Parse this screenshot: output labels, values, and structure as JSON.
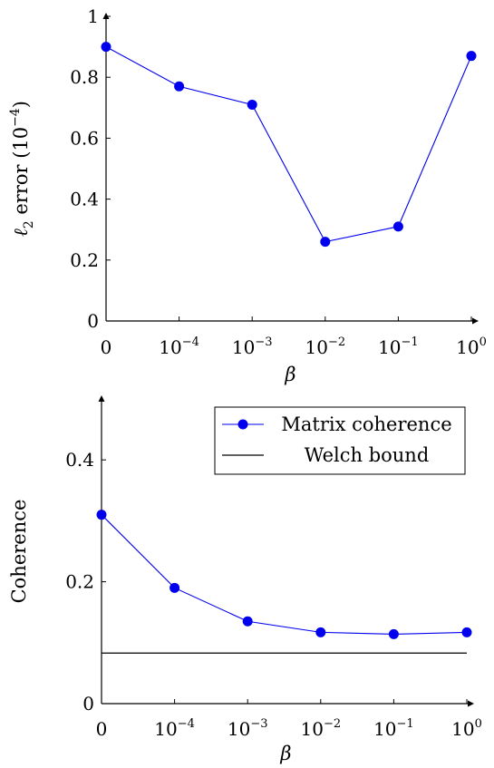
{
  "chart_data": [
    {
      "type": "line",
      "x": [
        "0",
        "10^-4",
        "10^-3",
        "10^-2",
        "10^-1",
        "10^0"
      ],
      "x_ticks": [
        {
          "base": "0",
          "exp": ""
        },
        {
          "base": "10",
          "exp": "−4"
        },
        {
          "base": "10",
          "exp": "−3"
        },
        {
          "base": "10",
          "exp": "−2"
        },
        {
          "base": "10",
          "exp": "−1"
        },
        {
          "base": "10",
          "exp": "0"
        }
      ],
      "y_ticks": [
        "0",
        "0.2",
        "0.4",
        "0.6",
        "0.8",
        "1"
      ],
      "y_tick_values": [
        0,
        0.2,
        0.4,
        0.6,
        0.8,
        1
      ],
      "series": [
        {
          "values": [
            0.9,
            0.77,
            0.71,
            0.26,
            0.31,
            0.87
          ],
          "color": "#0000ee",
          "marker": "circle"
        }
      ],
      "xlabel": "β",
      "ylabel": "ℓ2 error (10−4)",
      "ylabel_parts": {
        "main": "ℓ",
        "sub": "2",
        "rest": " error (10",
        "exp": "−4",
        "close": ")"
      },
      "ylim": [
        0,
        1
      ],
      "grid": false
    },
    {
      "type": "line",
      "x": [
        "0",
        "10^-4",
        "10^-3",
        "10^-2",
        "10^-1",
        "10^0"
      ],
      "x_ticks": [
        {
          "base": "0",
          "exp": ""
        },
        {
          "base": "10",
          "exp": "−4"
        },
        {
          "base": "10",
          "exp": "−3"
        },
        {
          "base": "10",
          "exp": "−2"
        },
        {
          "base": "10",
          "exp": "−1"
        },
        {
          "base": "10",
          "exp": "0"
        }
      ],
      "y_ticks": [
        "0",
        "0.2",
        "0.4"
      ],
      "y_tick_values": [
        0,
        0.2,
        0.4
      ],
      "series": [
        {
          "name": "Matrix coherence",
          "values": [
            0.31,
            0.19,
            0.135,
            0.117,
            0.114,
            0.117
          ],
          "color": "#0000ee",
          "marker": "circle"
        },
        {
          "name": "Welch bound",
          "values": [
            0.083,
            0.083,
            0.083,
            0.083,
            0.083,
            0.083
          ],
          "color": "#000000",
          "marker": "none"
        }
      ],
      "xlabel": "β",
      "ylabel": "Coherence",
      "ylim": [
        0,
        0.5
      ],
      "legend_position": "top-right",
      "grid": false
    }
  ]
}
